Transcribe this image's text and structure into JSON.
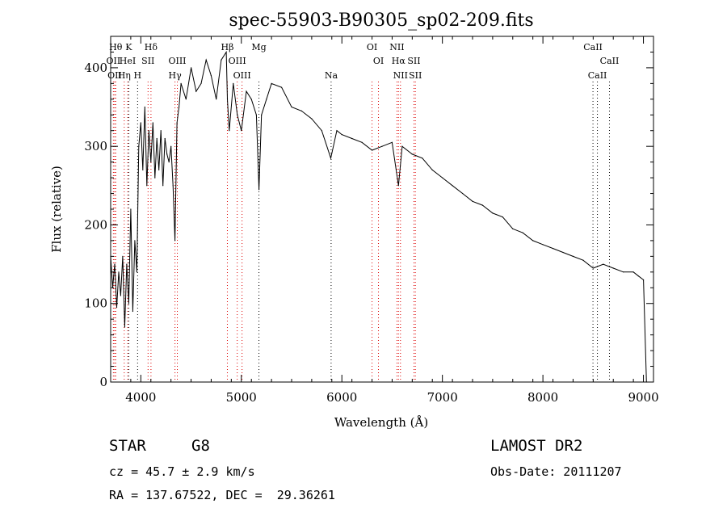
{
  "chart_data": {
    "type": "line",
    "title": "spec-55903-B90305_sp02-209.fits",
    "xlabel": "Wavelength (Å)",
    "ylabel": "Flux (relative)",
    "xlim": [
      3700,
      9100
    ],
    "ylim": [
      0,
      440
    ],
    "xticks": [
      4000,
      5000,
      6000,
      7000,
      8000,
      9000
    ],
    "yticks": [
      0,
      100,
      200,
      300,
      400
    ],
    "grid": false,
    "series": [
      {
        "color": "#000000",
        "x": [
          3700,
          3720,
          3740,
          3760,
          3780,
          3800,
          3820,
          3840,
          3860,
          3880,
          3900,
          3920,
          3940,
          3960,
          3980,
          4000,
          4020,
          4040,
          4060,
          4080,
          4100,
          4120,
          4140,
          4160,
          4180,
          4200,
          4220,
          4240,
          4260,
          4280,
          4300,
          4320,
          4340,
          4360,
          4380,
          4400,
          4450,
          4500,
          4550,
          4600,
          4650,
          4700,
          4750,
          4800,
          4850,
          4861,
          4880,
          4920,
          4960,
          5000,
          5050,
          5100,
          5150,
          5175,
          5200,
          5250,
          5300,
          5400,
          5500,
          5600,
          5700,
          5800,
          5890,
          5950,
          6000,
          6100,
          6200,
          6300,
          6400,
          6500,
          6563,
          6600,
          6700,
          6800,
          6900,
          7000,
          7100,
          7200,
          7300,
          7400,
          7500,
          7600,
          7700,
          7800,
          7900,
          8000,
          8100,
          8200,
          8300,
          8400,
          8500,
          8600,
          8700,
          8800,
          8900,
          8950,
          9000,
          9030
        ],
        "y": [
          160,
          120,
          150,
          95,
          140,
          110,
          160,
          70,
          150,
          100,
          220,
          90,
          180,
          140,
          300,
          330,
          270,
          350,
          250,
          320,
          280,
          330,
          260,
          310,
          270,
          320,
          250,
          310,
          290,
          280,
          300,
          250,
          180,
          330,
          350,
          380,
          360,
          400,
          370,
          380,
          410,
          390,
          360,
          410,
          420,
          360,
          320,
          380,
          340,
          320,
          370,
          360,
          340,
          245,
          340,
          360,
          380,
          375,
          350,
          345,
          335,
          320,
          285,
          320,
          315,
          310,
          305,
          295,
          300,
          305,
          250,
          300,
          290,
          285,
          270,
          260,
          250,
          240,
          230,
          225,
          215,
          210,
          195,
          190,
          180,
          175,
          170,
          165,
          160,
          155,
          145,
          150,
          145,
          140,
          140,
          135,
          130,
          0
        ]
      }
    ],
    "lines": [
      {
        "wl": 3750,
        "row": 1,
        "label": "Hθ",
        "color": "#dd0000"
      },
      {
        "wl": 3880,
        "row": 1,
        "label": "K",
        "color": "#000000"
      },
      {
        "wl": 4101,
        "row": 1,
        "label": "Hδ",
        "color": "#dd0000"
      },
      {
        "wl": 4861,
        "row": 1,
        "label": "Hβ",
        "color": "#dd0000"
      },
      {
        "wl": 5175,
        "row": 1,
        "label": "Mg",
        "color": "#000000"
      },
      {
        "wl": 6300,
        "row": 1,
        "label": "OI",
        "color": "#dd0000"
      },
      {
        "wl": 6548,
        "row": 1,
        "label": "NII",
        "color": "#dd0000"
      },
      {
        "wl": 8498,
        "row": 1,
        "label": "CaII",
        "color": "#000000"
      },
      {
        "wl": 3727,
        "row": 2,
        "label": "OII",
        "color": "#dd0000"
      },
      {
        "wl": 3869,
        "row": 2,
        "label": "HeI",
        "color": "#dd0000"
      },
      {
        "wl": 4072,
        "row": 2,
        "label": "SII",
        "color": "#dd0000"
      },
      {
        "wl": 4363,
        "row": 2,
        "label": "OIII",
        "color": "#dd0000"
      },
      {
        "wl": 4959,
        "row": 2,
        "label": "OIII",
        "color": "#dd0000"
      },
      {
        "wl": 6364,
        "row": 2,
        "label": "OI",
        "color": "#dd0000"
      },
      {
        "wl": 6563,
        "row": 2,
        "label": "Hα",
        "color": "#dd0000"
      },
      {
        "wl": 6717,
        "row": 2,
        "label": "SII",
        "color": "#dd0000"
      },
      {
        "wl": 8662,
        "row": 2,
        "label": "CaII",
        "color": "#000000"
      },
      {
        "wl": 3740,
        "row": 3,
        "label": "OII",
        "color": "#dd0000"
      },
      {
        "wl": 3835,
        "row": 3,
        "label": "Hη",
        "color": "#dd0000"
      },
      {
        "wl": 3968,
        "row": 3,
        "label": "H",
        "color": "#000000"
      },
      {
        "wl": 4340,
        "row": 3,
        "label": "Hγ",
        "color": "#dd0000"
      },
      {
        "wl": 5007,
        "row": 3,
        "label": "OIII",
        "color": "#dd0000"
      },
      {
        "wl": 5893,
        "row": 3,
        "label": "Na",
        "color": "#000000"
      },
      {
        "wl": 6583,
        "row": 3,
        "label": "NII",
        "color": "#dd0000"
      },
      {
        "wl": 6731,
        "row": 3,
        "label": "SII",
        "color": "#dd0000"
      },
      {
        "wl": 8542,
        "row": 3,
        "label": "CaII",
        "color": "#000000"
      }
    ]
  },
  "info": {
    "object_class": "STAR",
    "subclass": "G8",
    "survey": "LAMOST DR2",
    "redshift": "cz = 45.7 ± 2.9 km/s",
    "obs_date": "Obs-Date: 20111207",
    "coordinates": "RA = 137.67522, DEC =  29.36261"
  }
}
